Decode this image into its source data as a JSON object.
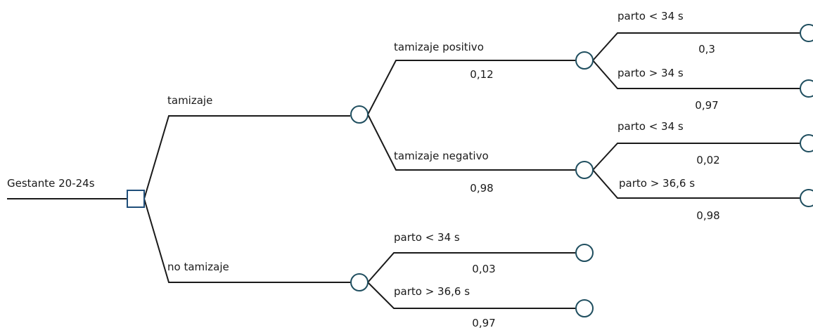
{
  "colors": {
    "chance_node": "#1f4e5f",
    "decision_node": "#1f4e7a",
    "edge": "#1a1a1a"
  },
  "root": {
    "label": "Gestante 20-24s"
  },
  "branches": [
    {
      "label": "tamizaje",
      "children": [
        {
          "label": "tamizaje positivo",
          "prob": "0,12",
          "children": [
            {
              "label": "parto < 34 s",
              "prob": "0,3"
            },
            {
              "label": "parto > 34 s",
              "prob": "0,97"
            }
          ]
        },
        {
          "label": "tamizaje negativo",
          "prob": "0,98",
          "children": [
            {
              "label": "parto < 34 s",
              "prob": "0,02"
            },
            {
              "label": "parto > 36,6 s",
              "prob": "0,98"
            }
          ]
        }
      ]
    },
    {
      "label": "no tamizaje",
      "children": [
        {
          "label": "parto < 34 s",
          "prob": "0,03"
        },
        {
          "label": "parto > 36,6 s",
          "prob": "0,97"
        }
      ]
    }
  ]
}
